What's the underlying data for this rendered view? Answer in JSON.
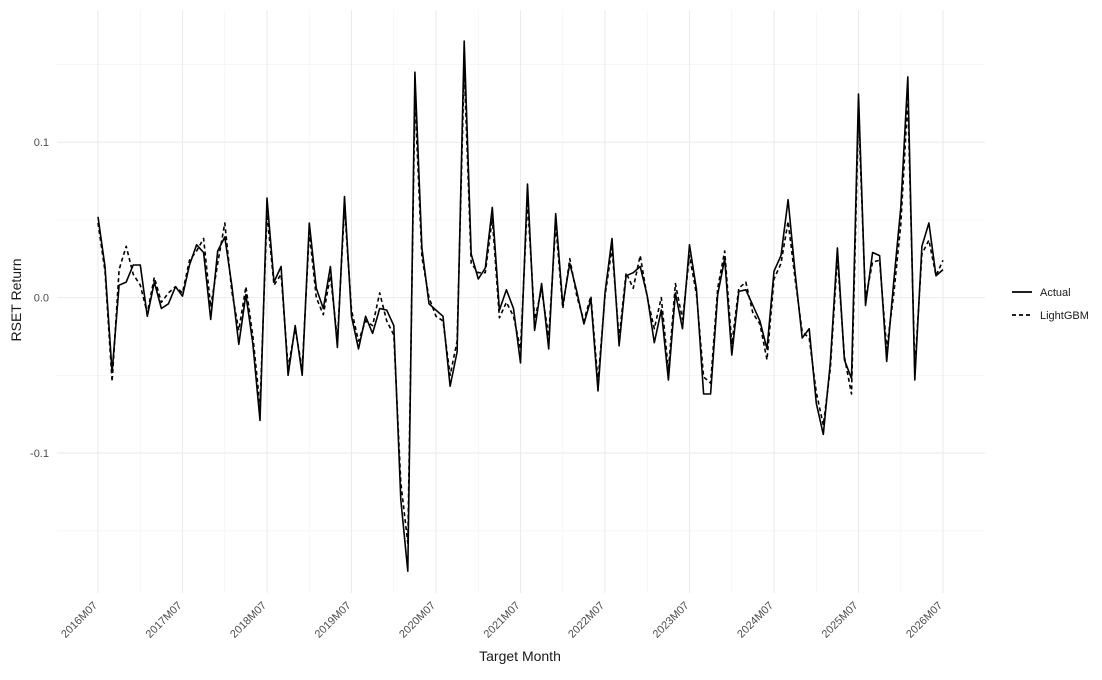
{
  "chart_data": {
    "type": "line",
    "xlabel": "Target Month",
    "ylabel": "RSET Return",
    "x_tick_labels": [
      "2016M07",
      "2017M07",
      "2018M07",
      "2019M07",
      "2020M07",
      "2021M07",
      "2022M07",
      "2023M07",
      "2024M07",
      "2025M07",
      "2026M07"
    ],
    "y_ticks": [
      -0.1,
      0.0,
      0.1
    ],
    "y_tick_labels": [
      "-0.1",
      "0.0",
      "0.1"
    ],
    "ylim": [
      -0.19,
      0.185
    ],
    "x_range": [
      "2016M07",
      "2026M07"
    ],
    "grid": true,
    "legend_position": "right",
    "series": [
      {
        "name": "Actual",
        "line_style": "solid",
        "color": "#000000",
        "values": [
          0.052,
          0.02,
          -0.048,
          0.008,
          0.01,
          0.021,
          0.021,
          -0.012,
          0.01,
          -0.007,
          -0.004,
          0.007,
          0.001,
          0.021,
          0.034,
          0.029,
          -0.014,
          0.03,
          0.039,
          0.008,
          -0.03,
          0.002,
          -0.03,
          -0.079,
          0.064,
          0.01,
          0.02,
          -0.05,
          -0.018,
          -0.05,
          0.048,
          0.006,
          -0.007,
          0.02,
          -0.032,
          0.065,
          -0.012,
          -0.033,
          -0.012,
          -0.023,
          -0.007,
          -0.008,
          -0.018,
          -0.13,
          -0.176,
          0.145,
          0.032,
          -0.004,
          -0.008,
          -0.012,
          -0.057,
          -0.035,
          0.165,
          0.028,
          0.012,
          0.019,
          0.058,
          -0.008,
          0.005,
          -0.007,
          -0.042,
          0.073,
          -0.021,
          0.009,
          -0.033,
          0.054,
          -0.005,
          0.022,
          0.004,
          -0.017,
          -0.001,
          -0.06,
          0.003,
          0.038,
          -0.031,
          0.014,
          0.016,
          0.02,
          0.001,
          -0.029,
          -0.008,
          -0.053,
          0.003,
          -0.02,
          0.034,
          0.005,
          -0.062,
          -0.062,
          0.002,
          0.025,
          -0.037,
          0.004,
          0.005,
          -0.005,
          -0.015,
          -0.033,
          0.017,
          0.027,
          0.063,
          0.016,
          -0.026,
          -0.02,
          -0.068,
          -0.088,
          -0.042,
          0.032,
          -0.04,
          -0.052,
          0.131,
          -0.005,
          0.029,
          0.027,
          -0.041,
          0.01,
          0.058,
          0.142,
          -0.053,
          0.033,
          0.048,
          0.014,
          0.018
        ]
      },
      {
        "name": "LightGBM",
        "line_style": "dashed",
        "color": "#000000",
        "values": [
          0.048,
          0.017,
          -0.054,
          0.018,
          0.033,
          0.015,
          0.008,
          -0.01,
          0.013,
          -0.003,
          0.003,
          0.007,
          0.003,
          0.024,
          0.03,
          0.038,
          -0.006,
          0.022,
          0.048,
          0.004,
          -0.021,
          0.007,
          -0.025,
          -0.07,
          0.054,
          0.008,
          0.015,
          -0.045,
          -0.02,
          -0.046,
          0.042,
          0.0,
          -0.011,
          0.014,
          -0.027,
          0.058,
          -0.008,
          -0.028,
          -0.015,
          -0.018,
          0.003,
          -0.015,
          -0.024,
          -0.119,
          -0.158,
          0.128,
          0.026,
          0.0,
          -0.012,
          -0.015,
          -0.05,
          -0.028,
          0.148,
          0.022,
          0.016,
          0.016,
          0.051,
          -0.013,
          -0.003,
          -0.012,
          -0.033,
          0.062,
          -0.014,
          0.005,
          -0.025,
          0.047,
          -0.007,
          0.025,
          0.001,
          -0.015,
          0.001,
          -0.054,
          0.001,
          0.032,
          -0.026,
          0.016,
          0.006,
          0.027,
          0.0,
          -0.02,
          0.0,
          -0.047,
          0.009,
          -0.014,
          0.027,
          0.002,
          -0.051,
          -0.055,
          0.006,
          0.03,
          -0.03,
          0.006,
          0.01,
          -0.01,
          -0.017,
          -0.04,
          0.012,
          0.022,
          0.049,
          0.012,
          -0.022,
          -0.026,
          -0.061,
          -0.082,
          -0.046,
          0.026,
          -0.038,
          -0.062,
          0.119,
          -0.001,
          0.023,
          0.024,
          -0.033,
          0.002,
          0.047,
          0.128,
          -0.046,
          0.028,
          0.037,
          0.014,
          0.024
        ]
      }
    ]
  }
}
